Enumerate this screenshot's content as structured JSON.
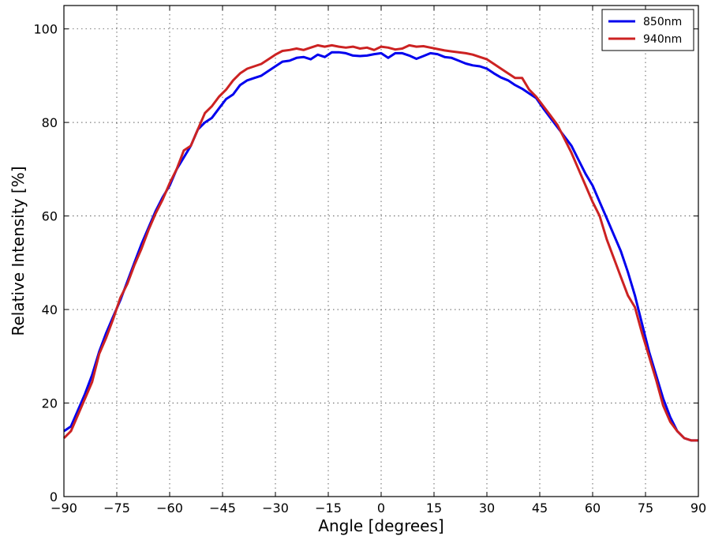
{
  "chart_data": {
    "type": "line",
    "title": "",
    "xlabel": "Angle [degrees]",
    "ylabel": "Relative Intensity [%]",
    "xlim": [
      -90,
      90
    ],
    "ylim": [
      0,
      105
    ],
    "xticks": [
      -90,
      -75,
      -60,
      -45,
      -30,
      -15,
      0,
      15,
      30,
      45,
      60,
      75,
      90
    ],
    "xtick_labels": [
      "−90",
      "−75",
      "−60",
      "−45",
      "−30",
      "−15",
      "0",
      "15",
      "30",
      "45",
      "60",
      "75",
      "90"
    ],
    "yticks": [
      0,
      20,
      40,
      60,
      80,
      100
    ],
    "ytick_labels": [
      "0",
      "20",
      "40",
      "60",
      "80",
      "100"
    ],
    "grid": true,
    "legend_position": "top-right",
    "x": [
      -90,
      -88,
      -86,
      -84,
      -82,
      -80,
      -78,
      -76,
      -74,
      -72,
      -70,
      -68,
      -66,
      -64,
      -62,
      -60,
      -58,
      -56,
      -54,
      -52,
      -50,
      -48,
      -46,
      -44,
      -42,
      -40,
      -38,
      -36,
      -34,
      -32,
      -30,
      -28,
      -26,
      -24,
      -22,
      -20,
      -18,
      -16,
      -14,
      -12,
      -10,
      -8,
      -6,
      -4,
      -2,
      0,
      2,
      4,
      6,
      8,
      10,
      12,
      14,
      16,
      18,
      20,
      22,
      24,
      26,
      28,
      30,
      32,
      34,
      36,
      38,
      40,
      42,
      44,
      46,
      48,
      50,
      52,
      54,
      56,
      58,
      60,
      62,
      64,
      66,
      68,
      70,
      72,
      74,
      76,
      78,
      80,
      82,
      84,
      86,
      88,
      90
    ],
    "series": [
      {
        "name": "850nm",
        "color": "#0000ee",
        "values": [
          14,
          15,
          18.5,
          22,
          26,
          31,
          35,
          38.5,
          42,
          46,
          50,
          54,
          57.5,
          61,
          64,
          66.5,
          70,
          72.5,
          75,
          78.5,
          80,
          81,
          83,
          85,
          86,
          88,
          89,
          89.5,
          90,
          91,
          92,
          93,
          93.2,
          93.8,
          94,
          93.5,
          94.5,
          94,
          95,
          95,
          94.8,
          94.3,
          94.2,
          94.3,
          94.6,
          94.8,
          93.8,
          94.8,
          94.8,
          94.3,
          93.6,
          94.2,
          94.8,
          94.6,
          94,
          93.8,
          93.2,
          92.6,
          92.2,
          92,
          91.5,
          90.5,
          89.6,
          89,
          88,
          87.2,
          86.2,
          85.2,
          83,
          81,
          79,
          77,
          75,
          72,
          69,
          66.5,
          63,
          59.5,
          56,
          52.5,
          48,
          43,
          37,
          31,
          26,
          21,
          17,
          14,
          12.5,
          12,
          12
        ]
      },
      {
        "name": "940nm",
        "color": "#cc2222",
        "values": [
          12.5,
          14,
          17.5,
          21,
          24.5,
          30.5,
          34,
          38,
          42.5,
          45.5,
          49.5,
          53,
          57,
          60.5,
          63.5,
          67,
          70,
          74,
          75,
          78.5,
          82,
          83.5,
          85.5,
          87,
          89,
          90.5,
          91.5,
          92,
          92.5,
          93.5,
          94.5,
          95.3,
          95.5,
          95.8,
          95.5,
          96,
          96.5,
          96.2,
          96.5,
          96.2,
          96,
          96.2,
          95.8,
          96,
          95.5,
          96.2,
          96,
          95.6,
          95.8,
          96.5,
          96.2,
          96.3,
          96,
          95.7,
          95.4,
          95.2,
          95,
          94.8,
          94.5,
          94,
          93.5,
          92.5,
          91.5,
          90.5,
          89.5,
          89.5,
          87,
          85.5,
          83.5,
          81.5,
          79.5,
          76.5,
          73.5,
          70,
          66.5,
          63,
          60,
          55,
          51,
          47,
          43,
          40.5,
          35,
          30,
          25,
          19.5,
          16,
          14,
          12.5,
          12,
          12
        ]
      }
    ],
    "legend": [
      "850nm",
      "940nm"
    ]
  }
}
